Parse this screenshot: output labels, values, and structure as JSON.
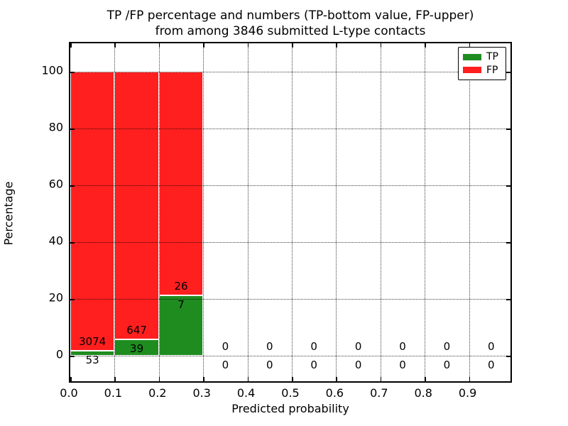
{
  "figure": {
    "title_line1": "TP /FP percentage and numbers (TP-bottom value, FP-upper)",
    "title_line2": "from among 3846 submitted L-type contacts"
  },
  "chart_data": {
    "type": "bar",
    "stacked": true,
    "normalized": "each bin stacked to 100% of bin total; labels show raw counts",
    "title": "TP /FP percentage and numbers (TP-bottom value, FP-upper)\nfrom among 3846 submitted L-type contacts",
    "xlabel": "Predicted probability",
    "ylabel": "Percentage",
    "total_submitted": 3846,
    "bin_edges": [
      0.0,
      0.1,
      0.2,
      0.3,
      0.4,
      0.5,
      0.6,
      0.7,
      0.8,
      0.9,
      1.0
    ],
    "series": [
      {
        "name": "TP",
        "color": "#1f8c1f",
        "counts": [
          53,
          39,
          7,
          0,
          0,
          0,
          0,
          0,
          0,
          0
        ]
      },
      {
        "name": "FP",
        "color": "#ff1f1f",
        "counts": [
          3074,
          647,
          26,
          0,
          0,
          0,
          0,
          0,
          0,
          0
        ]
      }
    ],
    "tp_percent_by_bin": [
      1.7,
      5.7,
      21.2,
      0,
      0,
      0,
      0,
      0,
      0,
      0
    ],
    "xticks": [
      "0.0",
      "0.1",
      "0.2",
      "0.3",
      "0.4",
      "0.5",
      "0.6",
      "0.7",
      "0.8",
      "0.9"
    ],
    "yticks": [
      "0",
      "20",
      "40",
      "60",
      "80",
      "100"
    ],
    "ytick_values": [
      0,
      20,
      40,
      60,
      80,
      100
    ],
    "xtick_values": [
      0.0,
      0.1,
      0.2,
      0.3,
      0.4,
      0.5,
      0.6,
      0.7,
      0.8,
      0.9
    ],
    "xlim": [
      0.0,
      1.0
    ],
    "ylim": [
      -10,
      110
    ],
    "grid": "dotted, both axes",
    "legend": {
      "position": "upper right",
      "entries": [
        {
          "label": "TP",
          "color": "#1f8c1f"
        },
        {
          "label": "FP",
          "color": "#ff1f1f"
        }
      ]
    }
  }
}
